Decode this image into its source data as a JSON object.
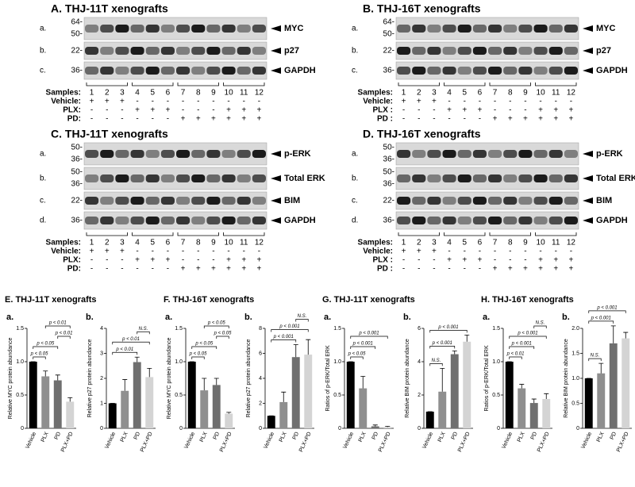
{
  "blots": [
    {
      "title": "A. THJ-11T xenografts",
      "rows": [
        {
          "letter": "a.",
          "markers": [
            "64-",
            "50-"
          ],
          "label": "MYC"
        },
        {
          "letter": "b.",
          "markers": [
            "22-"
          ],
          "label": "p27"
        },
        {
          "letter": "c.",
          "markers": [
            "36-"
          ],
          "label": "GAPDH"
        }
      ],
      "samples_label": "Samples:",
      "samples": [
        "1",
        "2",
        "3",
        "4",
        "5",
        "6",
        "7",
        "8",
        "9",
        "10",
        "11",
        "12"
      ],
      "treatments": [
        {
          "name": "Vehicle:",
          "signs": [
            "+",
            "+",
            "+",
            "-",
            "-",
            "-",
            "-",
            "-",
            "-",
            "-",
            "-",
            "-"
          ]
        },
        {
          "name": "PLX:",
          "signs": [
            "-",
            "-",
            "-",
            "+",
            "+",
            "+",
            "-",
            "-",
            "-",
            "+",
            "+",
            "+"
          ]
        },
        {
          "name": "PD:",
          "signs": [
            "-",
            "-",
            "-",
            "-",
            "-",
            "-",
            "+",
            "+",
            "+",
            "+",
            "+",
            "+"
          ]
        }
      ]
    },
    {
      "title": "B. THJ-16T xenografts",
      "rows": [
        {
          "letter": "a.",
          "markers": [
            "64-",
            "50-"
          ],
          "label": "MYC"
        },
        {
          "letter": "b.",
          "markers": [
            "22-"
          ],
          "label": "p27"
        },
        {
          "letter": "c.",
          "markers": [
            "36-"
          ],
          "label": "GAPDH"
        }
      ],
      "samples_label": "Samples:",
      "samples": [
        "1",
        "2",
        "3",
        "4",
        "5",
        "6",
        "7",
        "8",
        "9",
        "10",
        "11",
        "12"
      ],
      "treatments": [
        {
          "name": "Vehicle:",
          "signs": [
            "+",
            "+",
            "+",
            "-",
            "-",
            "-",
            "-",
            "-",
            "-",
            "-",
            "-",
            "-"
          ]
        },
        {
          "name": "PLX :",
          "signs": [
            "-",
            "-",
            "-",
            "+",
            "+",
            "+",
            "-",
            "-",
            "-",
            "+",
            "+",
            "+"
          ]
        },
        {
          "name": "PD :",
          "signs": [
            "-",
            "-",
            "-",
            "-",
            "-",
            "-",
            "+",
            "+",
            "+",
            "+",
            "+",
            "+"
          ]
        }
      ]
    },
    {
      "title": "C. THJ-11T xenografts",
      "rows": [
        {
          "letter": "a.",
          "markers": [
            "50-",
            "36-"
          ],
          "label": "p-ERK"
        },
        {
          "letter": "b.",
          "markers": [
            "50-",
            "36-"
          ],
          "label": "Total ERK"
        },
        {
          "letter": "c.",
          "markers": [
            "22-"
          ],
          "label": "BIM"
        },
        {
          "letter": "d.",
          "markers": [
            "36-"
          ],
          "label": "GAPDH"
        }
      ],
      "samples_label": "Samples:",
      "samples": [
        "1",
        "2",
        "3",
        "4",
        "5",
        "6",
        "7",
        "8",
        "9",
        "10",
        "11",
        "12"
      ],
      "treatments": [
        {
          "name": "Vehicle:",
          "signs": [
            "+",
            "+",
            "+",
            "-",
            "-",
            "-",
            "-",
            "-",
            "-",
            "-",
            "-",
            "-"
          ]
        },
        {
          "name": "PLX:",
          "signs": [
            "-",
            "-",
            "-",
            "+",
            "+",
            "+",
            "-",
            "-",
            "-",
            "+",
            "+",
            "+"
          ]
        },
        {
          "name": "PD:",
          "signs": [
            "-",
            "-",
            "-",
            "-",
            "-",
            "-",
            "+",
            "+",
            "+",
            "+",
            "+",
            "+"
          ]
        }
      ]
    },
    {
      "title": "D. THJ-16T xenografts",
      "rows": [
        {
          "letter": "a.",
          "markers": [
            "50-",
            "36-"
          ],
          "label": "p-ERK"
        },
        {
          "letter": "b.",
          "markers": [
            "50-",
            "36-"
          ],
          "label": "Total ERK"
        },
        {
          "letter": "c.",
          "markers": [
            "22-"
          ],
          "label": "BIM"
        },
        {
          "letter": "d.",
          "markers": [
            "36-"
          ],
          "label": "GAPDH"
        }
      ],
      "samples_label": "Samples:",
      "samples": [
        "1",
        "2",
        "3",
        "4",
        "5",
        "6",
        "7",
        "8",
        "9",
        "10",
        "11",
        "12"
      ],
      "treatments": [
        {
          "name": "Vehicle:",
          "signs": [
            "+",
            "+",
            "+",
            "-",
            "-",
            "-",
            "-",
            "-",
            "-",
            "-",
            "-",
            "-"
          ]
        },
        {
          "name": "PLX :",
          "signs": [
            "-",
            "-",
            "-",
            "+",
            "+",
            "+",
            "-",
            "-",
            "-",
            "+",
            "+",
            "+"
          ]
        },
        {
          "name": "PD :",
          "signs": [
            "-",
            "-",
            "-",
            "-",
            "-",
            "-",
            "+",
            "+",
            "+",
            "+",
            "+",
            "+"
          ]
        }
      ]
    }
  ],
  "chart_data": [
    {
      "type": "bar",
      "title": "E. THJ-11T xenografts",
      "panel": "a.",
      "ylabel": "Relative MYC protein abundance",
      "categories": [
        "Vehicle",
        "PLX",
        "PD",
        "PLX+PD"
      ],
      "values": [
        1.0,
        0.78,
        0.72,
        0.4
      ],
      "errors": [
        0,
        0.08,
        0.08,
        0.06
      ],
      "colors": [
        "#000000",
        "#8f8f8f",
        "#6f6f6f",
        "#d4d4d4"
      ],
      "ylim": [
        0,
        1.5
      ],
      "yticks": [
        0,
        0.5,
        {
          "value": 1,
          "label": "1.0"
        },
        1.5
      ],
      "annotations": [
        "p < 0.05",
        "p < 0.05",
        "p < 0.01",
        "p < 0.01"
      ]
    },
    {
      "type": "bar",
      "panel": "b.",
      "ylabel": "Relative p27 protein abundance",
      "categories": [
        "Vehicle",
        "PLX",
        "PD",
        "PLX+PD"
      ],
      "values": [
        1.0,
        1.5,
        2.65,
        2.05
      ],
      "errors": [
        0,
        0.45,
        0.2,
        0.35
      ],
      "colors": [
        "#000000",
        "#8f8f8f",
        "#6f6f6f",
        "#d4d4d4"
      ],
      "ylim": [
        0,
        4
      ],
      "yticks": [
        0,
        1,
        2,
        3,
        4
      ],
      "annotations": [
        "p < 0.01",
        "p < 0.01",
        "N.S."
      ]
    },
    {
      "type": "bar",
      "title": "F. THJ-16T xenografts",
      "panel": "a.",
      "ylabel": "Relative MYC protein abundance",
      "categories": [
        "Vehicle",
        "PLX",
        "PD",
        "PLX+PD"
      ],
      "values": [
        1.0,
        0.57,
        0.65,
        0.22
      ],
      "errors": [
        0,
        0.18,
        0.1,
        0.02
      ],
      "colors": [
        "#000000",
        "#8f8f8f",
        "#6f6f6f",
        "#d4d4d4"
      ],
      "ylim": [
        0,
        1.5
      ],
      "yticks": [
        0,
        0.5,
        {
          "value": 1,
          "label": "1.0"
        },
        1.5
      ],
      "annotations": [
        "p < 0.05",
        "p < 0.05",
        "p < 0.05",
        "p < 0.05"
      ]
    },
    {
      "type": "bar",
      "panel": "b.",
      "ylabel": "Relative p27 protein abundance",
      "categories": [
        "Vehicle",
        "PLX",
        "PD",
        "PLX+PD"
      ],
      "values": [
        1.0,
        2.1,
        5.7,
        5.9
      ],
      "errors": [
        0,
        0.8,
        1.0,
        1.2
      ],
      "colors": [
        "#000000",
        "#8f8f8f",
        "#6f6f6f",
        "#d4d4d4"
      ],
      "ylim": [
        0,
        8
      ],
      "yticks": [
        0,
        2,
        4,
        6,
        8
      ],
      "annotations": [
        "p < 0.001",
        "p < 0.001",
        "N.S."
      ]
    },
    {
      "type": "bar",
      "title": "G. THJ-11T xenografts",
      "panel": "a.",
      "ylabel": "Ratios of p-ERK/Total ERK",
      "categories": [
        "Vehicle",
        "PLX",
        "PD",
        "PLX+PD"
      ],
      "values": [
        1.0,
        0.6,
        0.03,
        0.02
      ],
      "errors": [
        0,
        0.18,
        0.02,
        0.01
      ],
      "colors": [
        "#000000",
        "#8f8f8f",
        "#6f6f6f",
        "#d4d4d4"
      ],
      "ylim": [
        0,
        1.5
      ],
      "yticks": [
        0,
        0.5,
        {
          "value": 1,
          "label": "1.0"
        },
        1.5
      ],
      "annotations": [
        "p < 0.05",
        "p < 0.001",
        "p < 0.001"
      ]
    },
    {
      "type": "bar",
      "panel": "b.",
      "ylabel": "Relative BIM protein abundance",
      "categories": [
        "Vehicle",
        "PLX",
        "PD",
        "PLX+PD"
      ],
      "values": [
        1.0,
        2.2,
        4.45,
        5.2
      ],
      "errors": [
        0,
        1.4,
        0.2,
        0.4
      ],
      "colors": [
        "#000000",
        "#8f8f8f",
        "#6f6f6f",
        "#d4d4d4"
      ],
      "ylim": [
        0,
        6
      ],
      "yticks": [
        0,
        2,
        4,
        6
      ],
      "annotations": [
        "N.S.",
        "p < 0.001",
        "p < 0.001"
      ]
    },
    {
      "type": "bar",
      "title": "H. THJ-16T xenografts",
      "panel": "a.",
      "ylabel": "Ratios of p-ERK/Total ERK",
      "categories": [
        "Vehicle",
        "PLX",
        "PD",
        "PLX+PD"
      ],
      "values": [
        1.0,
        0.6,
        0.38,
        0.44
      ],
      "errors": [
        0,
        0.06,
        0.06,
        0.08
      ],
      "colors": [
        "#000000",
        "#8f8f8f",
        "#6f6f6f",
        "#d4d4d4"
      ],
      "ylim": [
        0,
        1.5
      ],
      "yticks": [
        0,
        0.5,
        {
          "value": 1,
          "label": "1.0"
        },
        1.5
      ],
      "annotations": [
        "p < 0.01",
        "p < 0.001",
        "p < 0.001",
        "N.S."
      ]
    },
    {
      "type": "bar",
      "panel": "b.",
      "ylabel": "Relative BIM protein abundance",
      "categories": [
        "Vehicle",
        "PLX",
        "PD",
        "PLX+PD"
      ],
      "values": [
        1.0,
        1.1,
        1.7,
        1.8
      ],
      "errors": [
        0,
        0.2,
        0.35,
        0.12
      ],
      "colors": [
        "#000000",
        "#8f8f8f",
        "#6f6f6f",
        "#d4d4d4"
      ],
      "ylim": [
        0,
        2
      ],
      "yticks": [
        0,
        0.5,
        {
          "value": 1,
          "label": "1.0"
        },
        1.5,
        {
          "value": 2,
          "label": "2.0"
        }
      ],
      "annotations": [
        "N.S.",
        "p < 0.001",
        "p < 0.001"
      ]
    }
  ]
}
